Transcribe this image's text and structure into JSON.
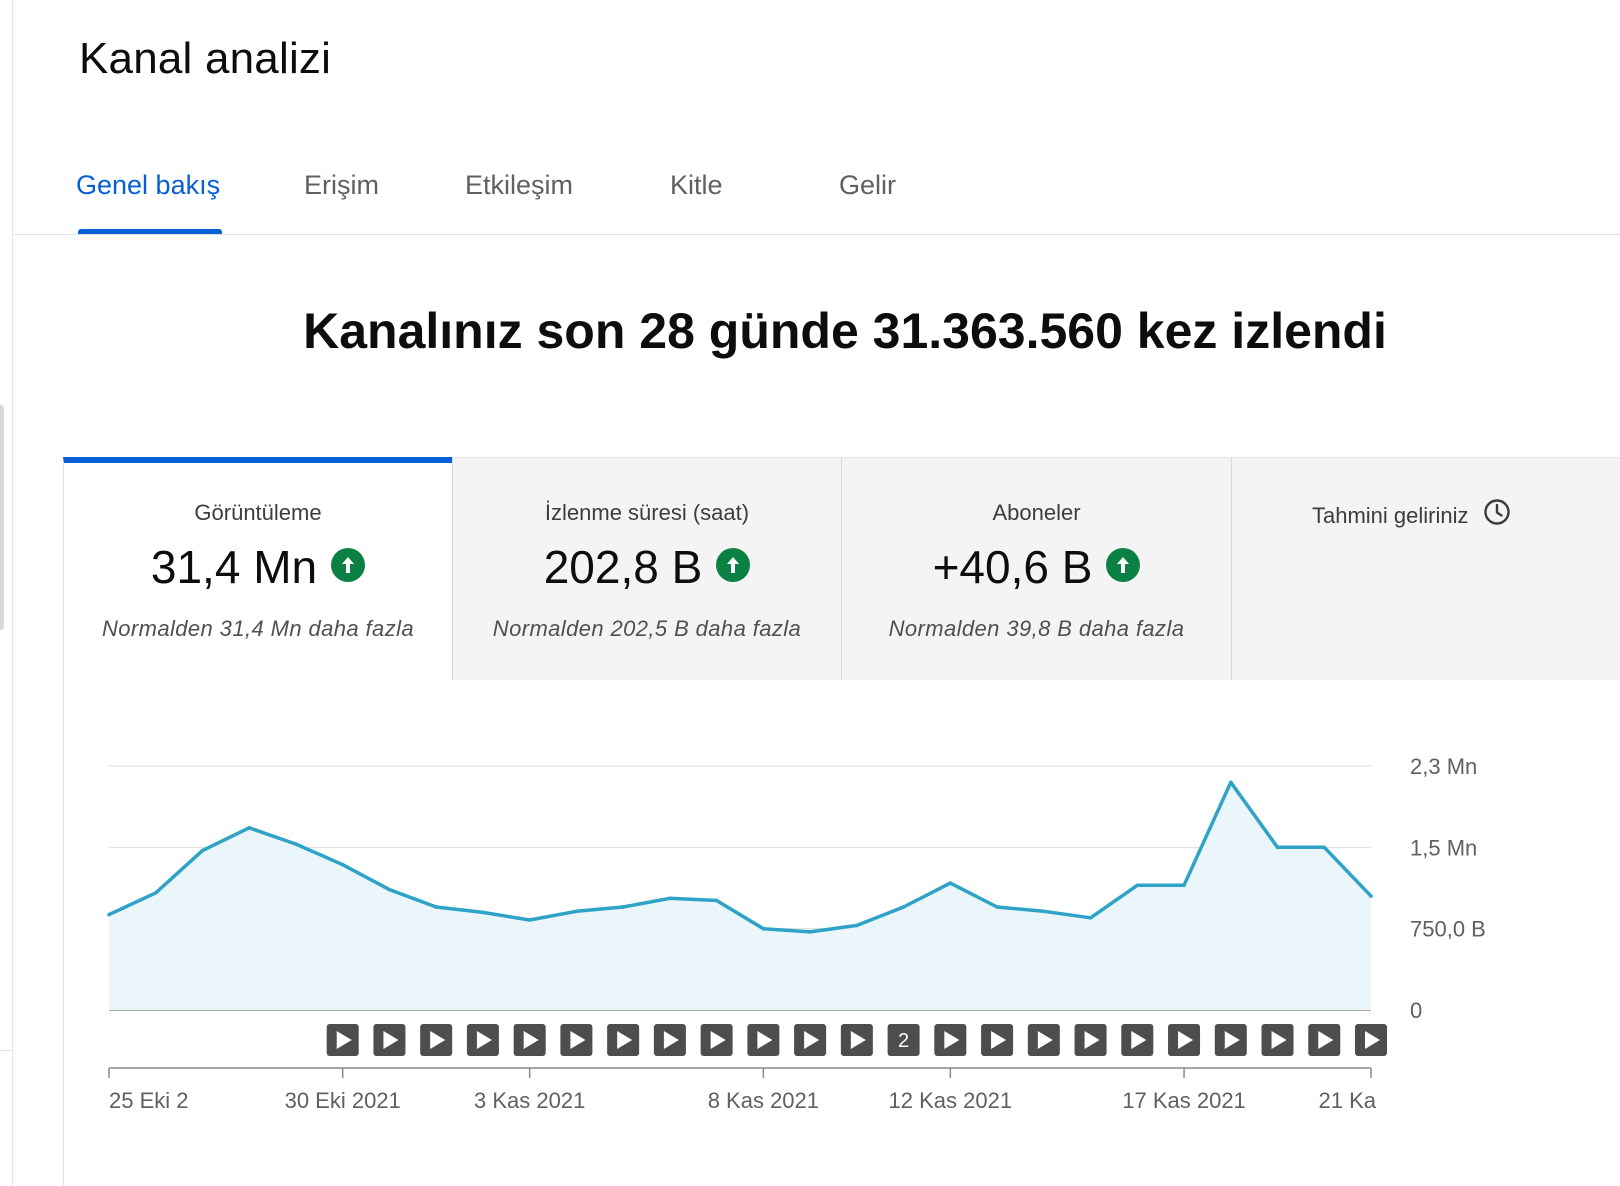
{
  "page_title": "Kanal analizi",
  "tabs": [
    {
      "label": "Genel bakış",
      "active": true
    },
    {
      "label": "Erişim",
      "active": false
    },
    {
      "label": "Etkileşim",
      "active": false
    },
    {
      "label": "Kitle",
      "active": false
    },
    {
      "label": "Gelir",
      "active": false
    }
  ],
  "headline": "Kanalınız son 28 günde 31.363.560 kez izlendi",
  "metric_cards": [
    {
      "label": "Görüntüleme",
      "value": "31,4 Mn",
      "trend_icon": "arrow-up-icon",
      "comparison": "Normalden 31,4 Mn daha fazla",
      "active": true
    },
    {
      "label": "İzlenme süresi (saat)",
      "value": "202,8 B",
      "trend_icon": "arrow-up-icon",
      "comparison": "Normalden 202,5 B daha fazla",
      "active": false
    },
    {
      "label": "Aboneler",
      "value": "+40,6 B",
      "trend_icon": "arrow-up-icon",
      "comparison": "Normalden 39,8 B daha fazla",
      "active": false
    },
    {
      "label": "Tahmini geliriniz",
      "value": "",
      "trend_icon": "clock-icon",
      "comparison": "",
      "active": false
    }
  ],
  "colors": {
    "accent": "#065fd4",
    "up": "#0b8043",
    "line": "#2fa3c7",
    "fill": "#eaf6f9",
    "marker": "#4d4d4d"
  },
  "chart_data": {
    "type": "area",
    "y_tick_labels": [
      "0",
      "750,0 B",
      "1,5 Mn",
      "2,3 Mn"
    ],
    "y_tick_values": [
      0,
      750000,
      1500000,
      2250000
    ],
    "ylim": [
      0,
      2250000
    ],
    "grid": true,
    "x_tick_labels": [
      "25 Eki 2",
      "30 Eki 2021",
      "3 Kas 2021",
      "8 Kas 2021",
      "12 Kas 2021",
      "17 Kas 2021",
      "21 Ka"
    ],
    "x_tick_day_index": [
      0,
      5,
      9,
      14,
      18,
      23,
      27
    ],
    "values": [
      880000,
      1080000,
      1470000,
      1680000,
      1530000,
      1340000,
      1110000,
      950000,
      900000,
      830000,
      910000,
      950000,
      1030000,
      1010000,
      750000,
      720000,
      780000,
      950000,
      1170000,
      950000,
      910000,
      850000,
      1150000,
      1150000,
      2100000,
      1500000,
      1500000,
      1050000
    ],
    "video_markers": [
      "▶",
      "▶",
      "▶",
      "▶",
      "▶",
      "▶",
      "▶",
      "▶",
      "▶",
      "▶",
      "▶",
      "▶",
      "2",
      "▶",
      "▶",
      "▶",
      "▶",
      "▶",
      "▶",
      "▶",
      "▶",
      "▶",
      "▶"
    ],
    "video_marker_day_index": [
      5,
      6,
      7,
      8,
      9,
      10,
      11,
      12,
      13,
      14,
      15,
      16,
      17,
      18,
      19,
      20,
      21,
      22,
      23,
      24,
      25,
      26,
      27
    ]
  }
}
